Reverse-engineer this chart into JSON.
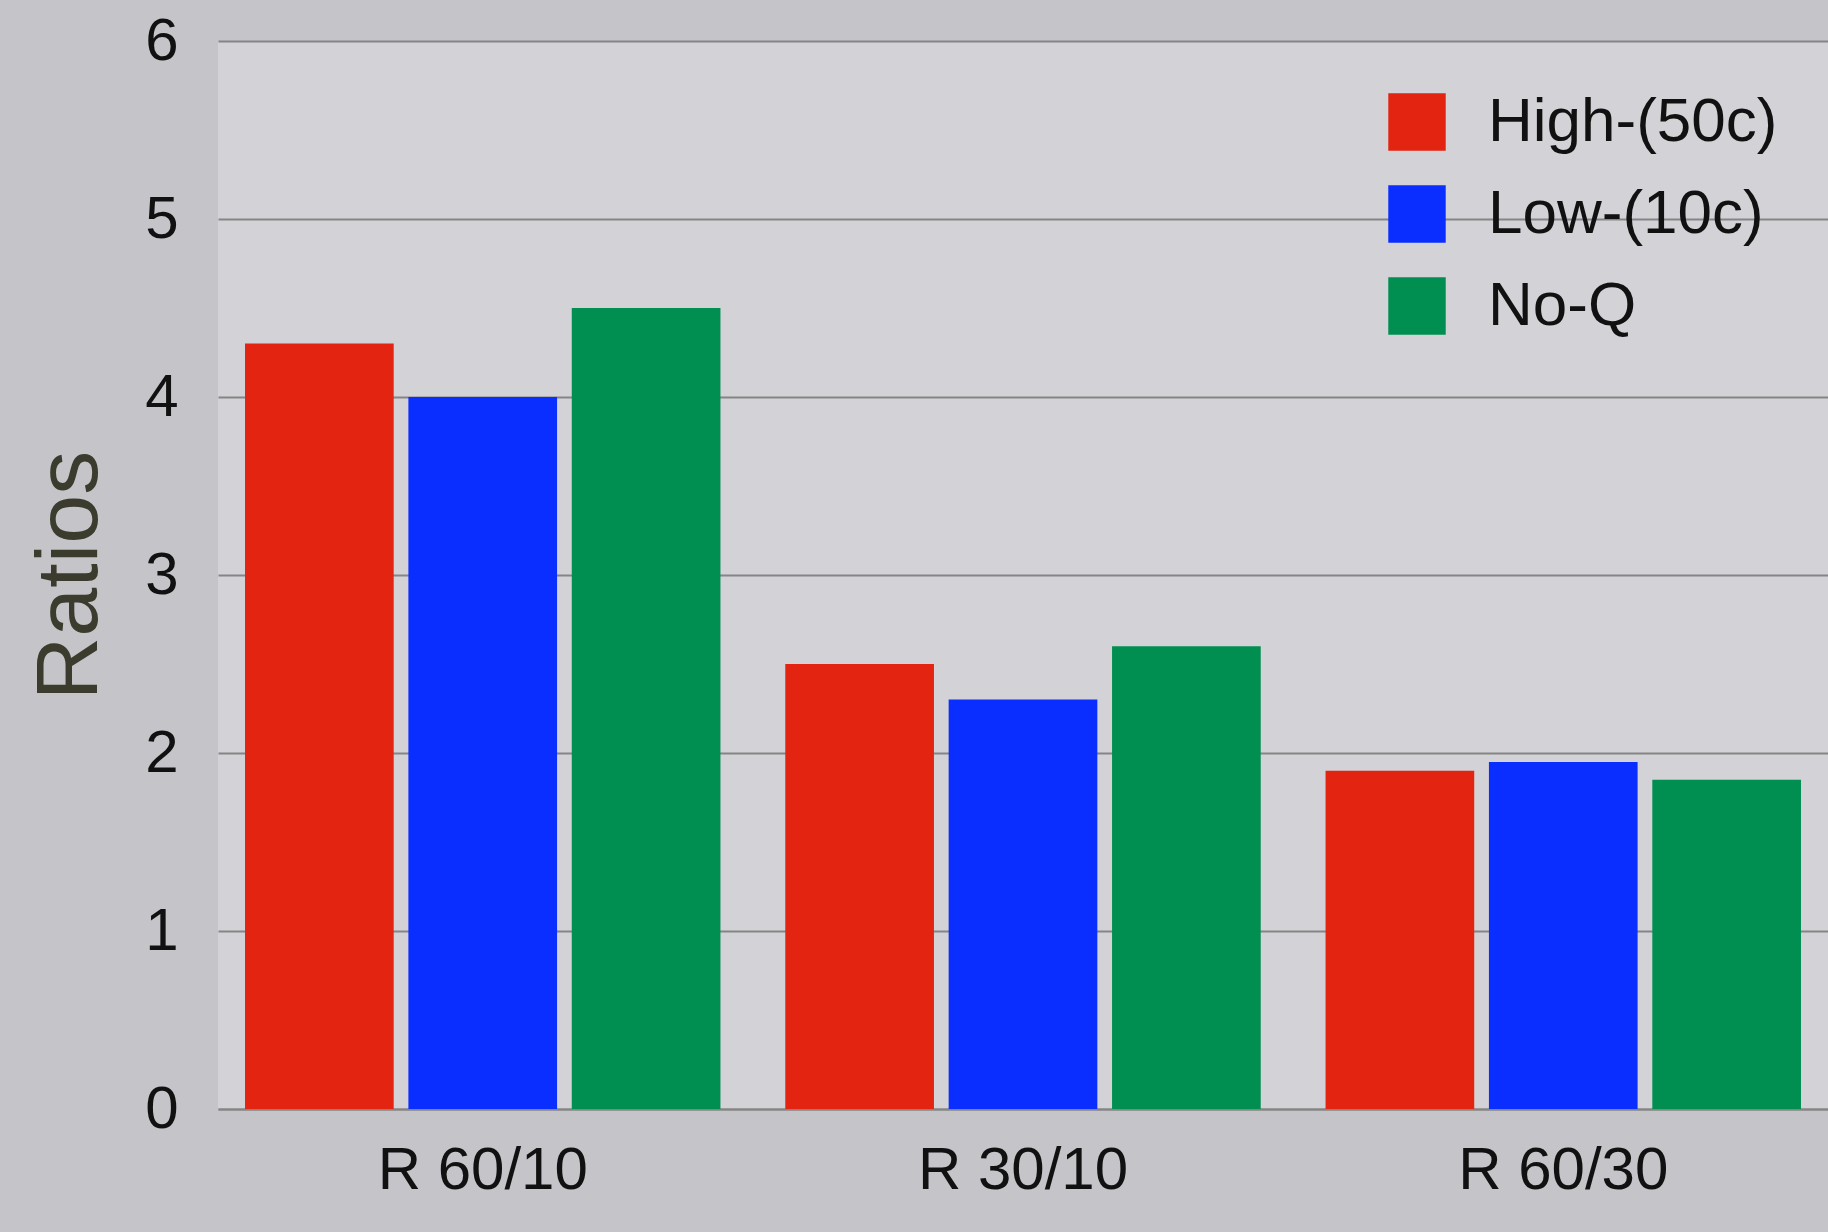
{
  "chart_data": {
    "type": "bar",
    "ylabel": "Ratios",
    "categories": [
      "R 60/10",
      "R 30/10",
      "R 60/30"
    ],
    "series": [
      {
        "name": "High-(50c)",
        "color": "#e32410",
        "values": [
          4.3,
          2.5,
          1.9
        ]
      },
      {
        "name": "Low-(10c)",
        "color": "#0a2eff",
        "values": [
          4.0,
          2.3,
          1.95
        ]
      },
      {
        "name": "No-Q",
        "color": "#008f50",
        "values": [
          4.5,
          2.6,
          1.85
        ]
      }
    ],
    "ylim": [
      0,
      6
    ],
    "yticks": [
      0,
      1,
      2,
      3,
      4,
      5,
      6
    ],
    "grid": "y",
    "legend": "top right"
  }
}
